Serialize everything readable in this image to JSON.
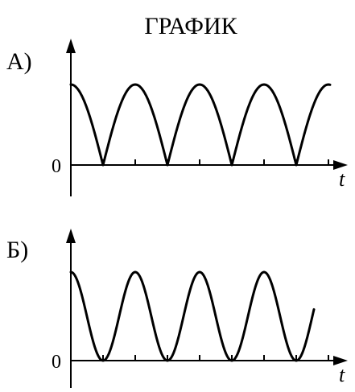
{
  "title": "ГРАФИК",
  "chart_data": [
    {
      "type": "line",
      "panel_label": "А)",
      "xlabel": "t",
      "ylabel": "",
      "y_tick_labels": [
        "0"
      ],
      "curve_shape": "absolute-cosine",
      "x_periods": 4,
      "peak_relative": 1.0,
      "ticks_per_half_period": 2,
      "colors": {
        "curve": "#000000",
        "axis": "#000000"
      }
    },
    {
      "type": "line",
      "panel_label": "Б)",
      "xlabel": "t",
      "ylabel": "",
      "y_tick_labels": [
        "0"
      ],
      "curve_shape": "squared-cosine",
      "x_periods": 4,
      "peak_relative": 1.0,
      "ticks_per_half_period": 2,
      "colors": {
        "curve": "#000000",
        "axis": "#000000"
      }
    }
  ]
}
